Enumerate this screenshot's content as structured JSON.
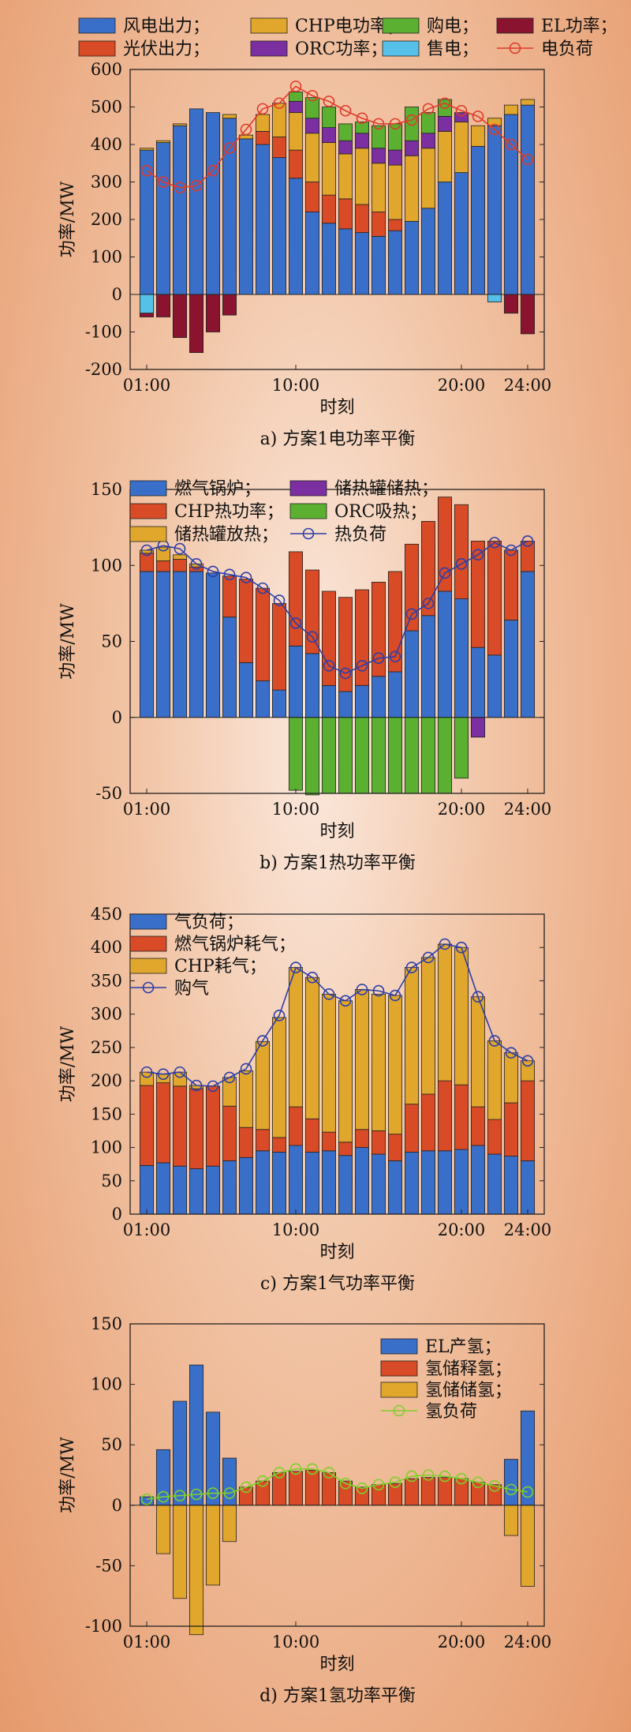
{
  "colors": {
    "wind": "#3a6fc9",
    "pv": "#d84b26",
    "chp": "#e1a72d",
    "orc": "#7b2fa0",
    "buy": "#5bb031",
    "sell": "#56c0e8",
    "el": "#8a1430",
    "load_line": "#e03a2a",
    "heat_line": "#2d3ea8",
    "gas_line": "#2d3ea8",
    "h2_line": "#7fcf2b"
  },
  "chart_data": [
    {
      "type": "bar",
      "caption": "a) 方案1电功率平衡",
      "xlabel": "时刻",
      "ylabel": "功率/MW",
      "ylim": [
        -200,
        600
      ],
      "yticks": [
        -200,
        -100,
        0,
        100,
        200,
        300,
        400,
        500,
        600
      ],
      "xtick_labels": [
        {
          "hour": 1,
          "label": "01:00"
        },
        {
          "hour": 10,
          "label": "10:00"
        },
        {
          "hour": 20,
          "label": "20:00"
        },
        {
          "hour": 24,
          "label": "24:00"
        }
      ],
      "x": [
        1,
        2,
        3,
        4,
        5,
        6,
        7,
        8,
        9,
        10,
        11,
        12,
        13,
        14,
        15,
        16,
        17,
        18,
        19,
        20,
        21,
        22,
        23,
        24
      ],
      "legend": [
        {
          "name": "风电出力；",
          "color": "#3a6fc9",
          "kind": "bar"
        },
        {
          "name": "CHP电功率；",
          "color": "#e1a72d",
          "kind": "bar"
        },
        {
          "name": "购电；",
          "color": "#5bb031",
          "kind": "bar"
        },
        {
          "name": "EL功率；",
          "color": "#8a1430",
          "kind": "bar"
        },
        {
          "name": "光伏出力；",
          "color": "#d84b26",
          "kind": "bar"
        },
        {
          "name": "ORC功率；",
          "color": "#7b2fa0",
          "kind": "bar"
        },
        {
          "name": "售电；",
          "color": "#56c0e8",
          "kind": "bar"
        },
        {
          "name": "电负荷",
          "color": "#e03a2a",
          "kind": "line"
        }
      ],
      "pos_series": [
        {
          "name": "风电出力",
          "color": "#3a6fc9",
          "values": [
            385,
            405,
            450,
            495,
            485,
            470,
            415,
            400,
            365,
            310,
            220,
            190,
            175,
            165,
            155,
            170,
            195,
            230,
            300,
            325,
            395,
            450,
            480,
            505
          ]
        },
        {
          "name": "光伏出力",
          "color": "#d84b26",
          "values": [
            0,
            0,
            0,
            0,
            0,
            0,
            0,
            35,
            55,
            75,
            80,
            75,
            80,
            75,
            65,
            30,
            0,
            0,
            0,
            0,
            0,
            0,
            0,
            0
          ]
        },
        {
          "name": "CHP电功率",
          "color": "#e1a72d",
          "values": [
            5,
            5,
            5,
            0,
            0,
            10,
            10,
            45,
            90,
            100,
            130,
            140,
            120,
            150,
            130,
            145,
            175,
            160,
            135,
            135,
            55,
            20,
            25,
            15
          ]
        },
        {
          "name": "ORC功率",
          "color": "#7b2fa0",
          "values": [
            0,
            0,
            0,
            0,
            0,
            0,
            0,
            0,
            0,
            30,
            40,
            40,
            35,
            40,
            40,
            40,
            40,
            40,
            40,
            25,
            0,
            0,
            0,
            0
          ]
        },
        {
          "name": "购电",
          "color": "#5bb031",
          "values": [
            0,
            0,
            0,
            0,
            0,
            0,
            0,
            0,
            0,
            25,
            55,
            55,
            45,
            30,
            60,
            70,
            90,
            55,
            45,
            0,
            0,
            0,
            0,
            0
          ]
        }
      ],
      "neg_series": [
        {
          "name": "售电",
          "color": "#56c0e8",
          "values": [
            -50,
            0,
            0,
            0,
            0,
            0,
            0,
            0,
            0,
            0,
            0,
            0,
            0,
            0,
            0,
            0,
            0,
            0,
            0,
            0,
            0,
            -20,
            0,
            0
          ]
        },
        {
          "name": "EL功率",
          "color": "#8a1430",
          "values": [
            -10,
            -60,
            -115,
            -155,
            -100,
            -55,
            0,
            0,
            0,
            0,
            0,
            0,
            0,
            0,
            0,
            0,
            0,
            0,
            0,
            0,
            0,
            0,
            -50,
            -105
          ]
        }
      ],
      "line": {
        "name": "电负荷",
        "color": "#e03a2a",
        "values": [
          330,
          300,
          285,
          290,
          330,
          390,
          440,
          495,
          510,
          555,
          530,
          515,
          490,
          470,
          455,
          455,
          465,
          495,
          510,
          490,
          475,
          440,
          400,
          360
        ]
      }
    },
    {
      "type": "bar",
      "caption": "b) 方案1热功率平衡",
      "xlabel": "时刻",
      "ylabel": "功率/MW",
      "ylim": [
        -50,
        150
      ],
      "yticks": [
        -50,
        0,
        50,
        100,
        150
      ],
      "xtick_labels": [
        {
          "hour": 1,
          "label": "01:00"
        },
        {
          "hour": 10,
          "label": "10:00"
        },
        {
          "hour": 20,
          "label": "20:00"
        },
        {
          "hour": 24,
          "label": "24:00"
        }
      ],
      "x": [
        1,
        2,
        3,
        4,
        5,
        6,
        7,
        8,
        9,
        10,
        11,
        12,
        13,
        14,
        15,
        16,
        17,
        18,
        19,
        20,
        21,
        22,
        23,
        24
      ],
      "legend": [
        {
          "name": "燃气锅炉；",
          "color": "#3a6fc9",
          "kind": "bar"
        },
        {
          "name": "储热罐储热；",
          "color": "#7b2fa0",
          "kind": "bar"
        },
        {
          "name": "CHP热功率；",
          "color": "#d84b26",
          "kind": "bar"
        },
        {
          "name": "ORC吸热；",
          "color": "#5bb031",
          "kind": "bar"
        },
        {
          "name": "储热罐放热；",
          "color": "#e1a72d",
          "kind": "bar"
        },
        {
          "name": "热负荷",
          "color": "#2d3ea8",
          "kind": "line"
        }
      ],
      "pos_series": [
        {
          "name": "燃气锅炉",
          "color": "#3a6fc9",
          "values": [
            96,
            96,
            96,
            96,
            95,
            66,
            36,
            24,
            18,
            47,
            42,
            21,
            17,
            21,
            27,
            30,
            57,
            67,
            83,
            78,
            46,
            41,
            64,
            96
          ]
        },
        {
          "name": "CHP热功率",
          "color": "#d84b26",
          "values": [
            12,
            7,
            8,
            3,
            0,
            27,
            55,
            61,
            57,
            62,
            55,
            62,
            62,
            63,
            62,
            66,
            57,
            62,
            62,
            62,
            70,
            75,
            46,
            20
          ]
        },
        {
          "name": "储热罐放热",
          "color": "#e1a72d",
          "values": [
            2,
            9,
            3,
            2,
            0,
            0,
            0,
            0,
            0,
            0,
            0,
            0,
            0,
            0,
            0,
            0,
            0,
            0,
            0,
            0,
            0,
            0,
            0,
            0
          ]
        }
      ],
      "neg_series": [
        {
          "name": "ORC吸热",
          "color": "#5bb031",
          "values": [
            0,
            0,
            0,
            0,
            0,
            0,
            0,
            0,
            0,
            -48,
            -51,
            -50,
            -50,
            -50,
            -50,
            -50,
            -50,
            -50,
            -50,
            -40,
            0,
            0,
            0,
            0
          ]
        },
        {
          "name": "储热罐储热",
          "color": "#7b2fa0",
          "values": [
            0,
            0,
            0,
            0,
            0,
            0,
            0,
            0,
            0,
            0,
            0,
            0,
            0,
            0,
            0,
            0,
            0,
            0,
            0,
            0,
            -13,
            0,
            0,
            0
          ]
        }
      ],
      "line": {
        "name": "热负荷",
        "color": "#2d3ea8",
        "values": [
          110,
          113,
          111,
          101,
          96,
          94,
          92,
          85,
          77,
          62,
          53,
          34,
          29,
          34,
          39,
          40,
          68,
          75,
          95,
          101,
          107,
          115,
          110,
          116
        ]
      }
    },
    {
      "type": "bar",
      "caption": "c) 方案1气功率平衡",
      "xlabel": "时刻",
      "ylabel": "功率/MW",
      "ylim": [
        0,
        450
      ],
      "yticks": [
        0,
        50,
        100,
        150,
        200,
        250,
        300,
        350,
        400,
        450
      ],
      "xtick_labels": [
        {
          "hour": 1,
          "label": "01:00"
        },
        {
          "hour": 10,
          "label": "10:00"
        },
        {
          "hour": 20,
          "label": "20:00"
        },
        {
          "hour": 24,
          "label": "24:00"
        }
      ],
      "x": [
        1,
        2,
        3,
        4,
        5,
        6,
        7,
        8,
        9,
        10,
        11,
        12,
        13,
        14,
        15,
        16,
        17,
        18,
        19,
        20,
        21,
        22,
        23,
        24
      ],
      "legend": [
        {
          "name": "气负荷；",
          "color": "#3a6fc9",
          "kind": "bar"
        },
        {
          "name": "燃气锅炉耗气；",
          "color": "#d84b26",
          "kind": "bar"
        },
        {
          "name": "CHP耗气；",
          "color": "#e1a72d",
          "kind": "bar"
        },
        {
          "name": "购气",
          "color": "#2d3ea8",
          "kind": "line"
        }
      ],
      "pos_series": [
        {
          "name": "气负荷",
          "color": "#3a6fc9",
          "values": [
            73,
            77,
            72,
            68,
            72,
            80,
            85,
            95,
            93,
            103,
            93,
            95,
            88,
            100,
            90,
            80,
            93,
            95,
            95,
            97,
            103,
            90,
            87,
            80
          ]
        },
        {
          "name": "燃气锅炉耗气",
          "color": "#d84b26",
          "values": [
            120,
            120,
            120,
            120,
            120,
            82,
            45,
            32,
            22,
            58,
            50,
            28,
            20,
            27,
            35,
            40,
            72,
            85,
            105,
            97,
            58,
            52,
            80,
            120
          ]
        },
        {
          "name": "CHP耗气",
          "color": "#e1a72d",
          "values": [
            20,
            13,
            21,
            5,
            0,
            43,
            85,
            132,
            180,
            209,
            212,
            207,
            212,
            210,
            205,
            208,
            205,
            205,
            205,
            206,
            165,
            118,
            75,
            30
          ]
        }
      ],
      "neg_series": [],
      "line": {
        "name": "购气",
        "color": "#2d3ea8",
        "values": [
          213,
          210,
          213,
          193,
          192,
          205,
          218,
          260,
          298,
          370,
          355,
          330,
          320,
          337,
          335,
          328,
          370,
          385,
          405,
          400,
          326,
          260,
          242,
          230
        ]
      }
    },
    {
      "type": "bar",
      "caption": "d) 方案1氢功率平衡",
      "xlabel": "时刻",
      "ylabel": "功率/MW",
      "ylim": [
        -100,
        150
      ],
      "yticks": [
        -100,
        -50,
        0,
        50,
        100,
        150
      ],
      "xtick_labels": [
        {
          "hour": 1,
          "label": "01:00"
        },
        {
          "hour": 10,
          "label": "10:00"
        },
        {
          "hour": 20,
          "label": "20:00"
        },
        {
          "hour": 24,
          "label": "24:00"
        }
      ],
      "x": [
        1,
        2,
        3,
        4,
        5,
        6,
        7,
        8,
        9,
        10,
        11,
        12,
        13,
        14,
        15,
        16,
        17,
        18,
        19,
        20,
        21,
        22,
        23,
        24
      ],
      "legend": [
        {
          "name": "EL产氢；",
          "color": "#3a6fc9",
          "kind": "bar"
        },
        {
          "name": "氢储释氢；",
          "color": "#d84b26",
          "kind": "bar"
        },
        {
          "name": "氢储储氢；",
          "color": "#e1a72d",
          "kind": "bar"
        },
        {
          "name": "氢负荷",
          "color": "#7fcf2b",
          "kind": "line"
        }
      ],
      "pos_series": [
        {
          "name": "EL产氢",
          "color": "#3a6fc9",
          "values": [
            7,
            46,
            86,
            116,
            77,
            39,
            0,
            0,
            0,
            0,
            0,
            0,
            0,
            0,
            0,
            0,
            0,
            0,
            0,
            0,
            0,
            0,
            38,
            78
          ]
        },
        {
          "name": "氢储释氢",
          "color": "#d84b26",
          "values": [
            0,
            0,
            0,
            0,
            0,
            0,
            15,
            20,
            27,
            28,
            29,
            27,
            20,
            15,
            17,
            18,
            22,
            23,
            23,
            22,
            19,
            17,
            0,
            0
          ]
        }
      ],
      "neg_series": [
        {
          "name": "氢储储氢",
          "color": "#e1a72d",
          "values": [
            0,
            -40,
            -77,
            -107,
            -66,
            -30,
            0,
            0,
            0,
            0,
            0,
            0,
            0,
            0,
            0,
            0,
            0,
            0,
            0,
            0,
            0,
            0,
            -25,
            -67
          ]
        }
      ],
      "line": {
        "name": "氢负荷",
        "color": "#7fcf2b",
        "values": [
          5,
          7,
          8,
          9,
          10,
          10,
          15,
          20,
          27,
          30,
          30,
          27,
          18,
          14,
          17,
          19,
          24,
          25,
          24,
          22,
          19,
          16,
          13,
          11
        ]
      }
    }
  ]
}
